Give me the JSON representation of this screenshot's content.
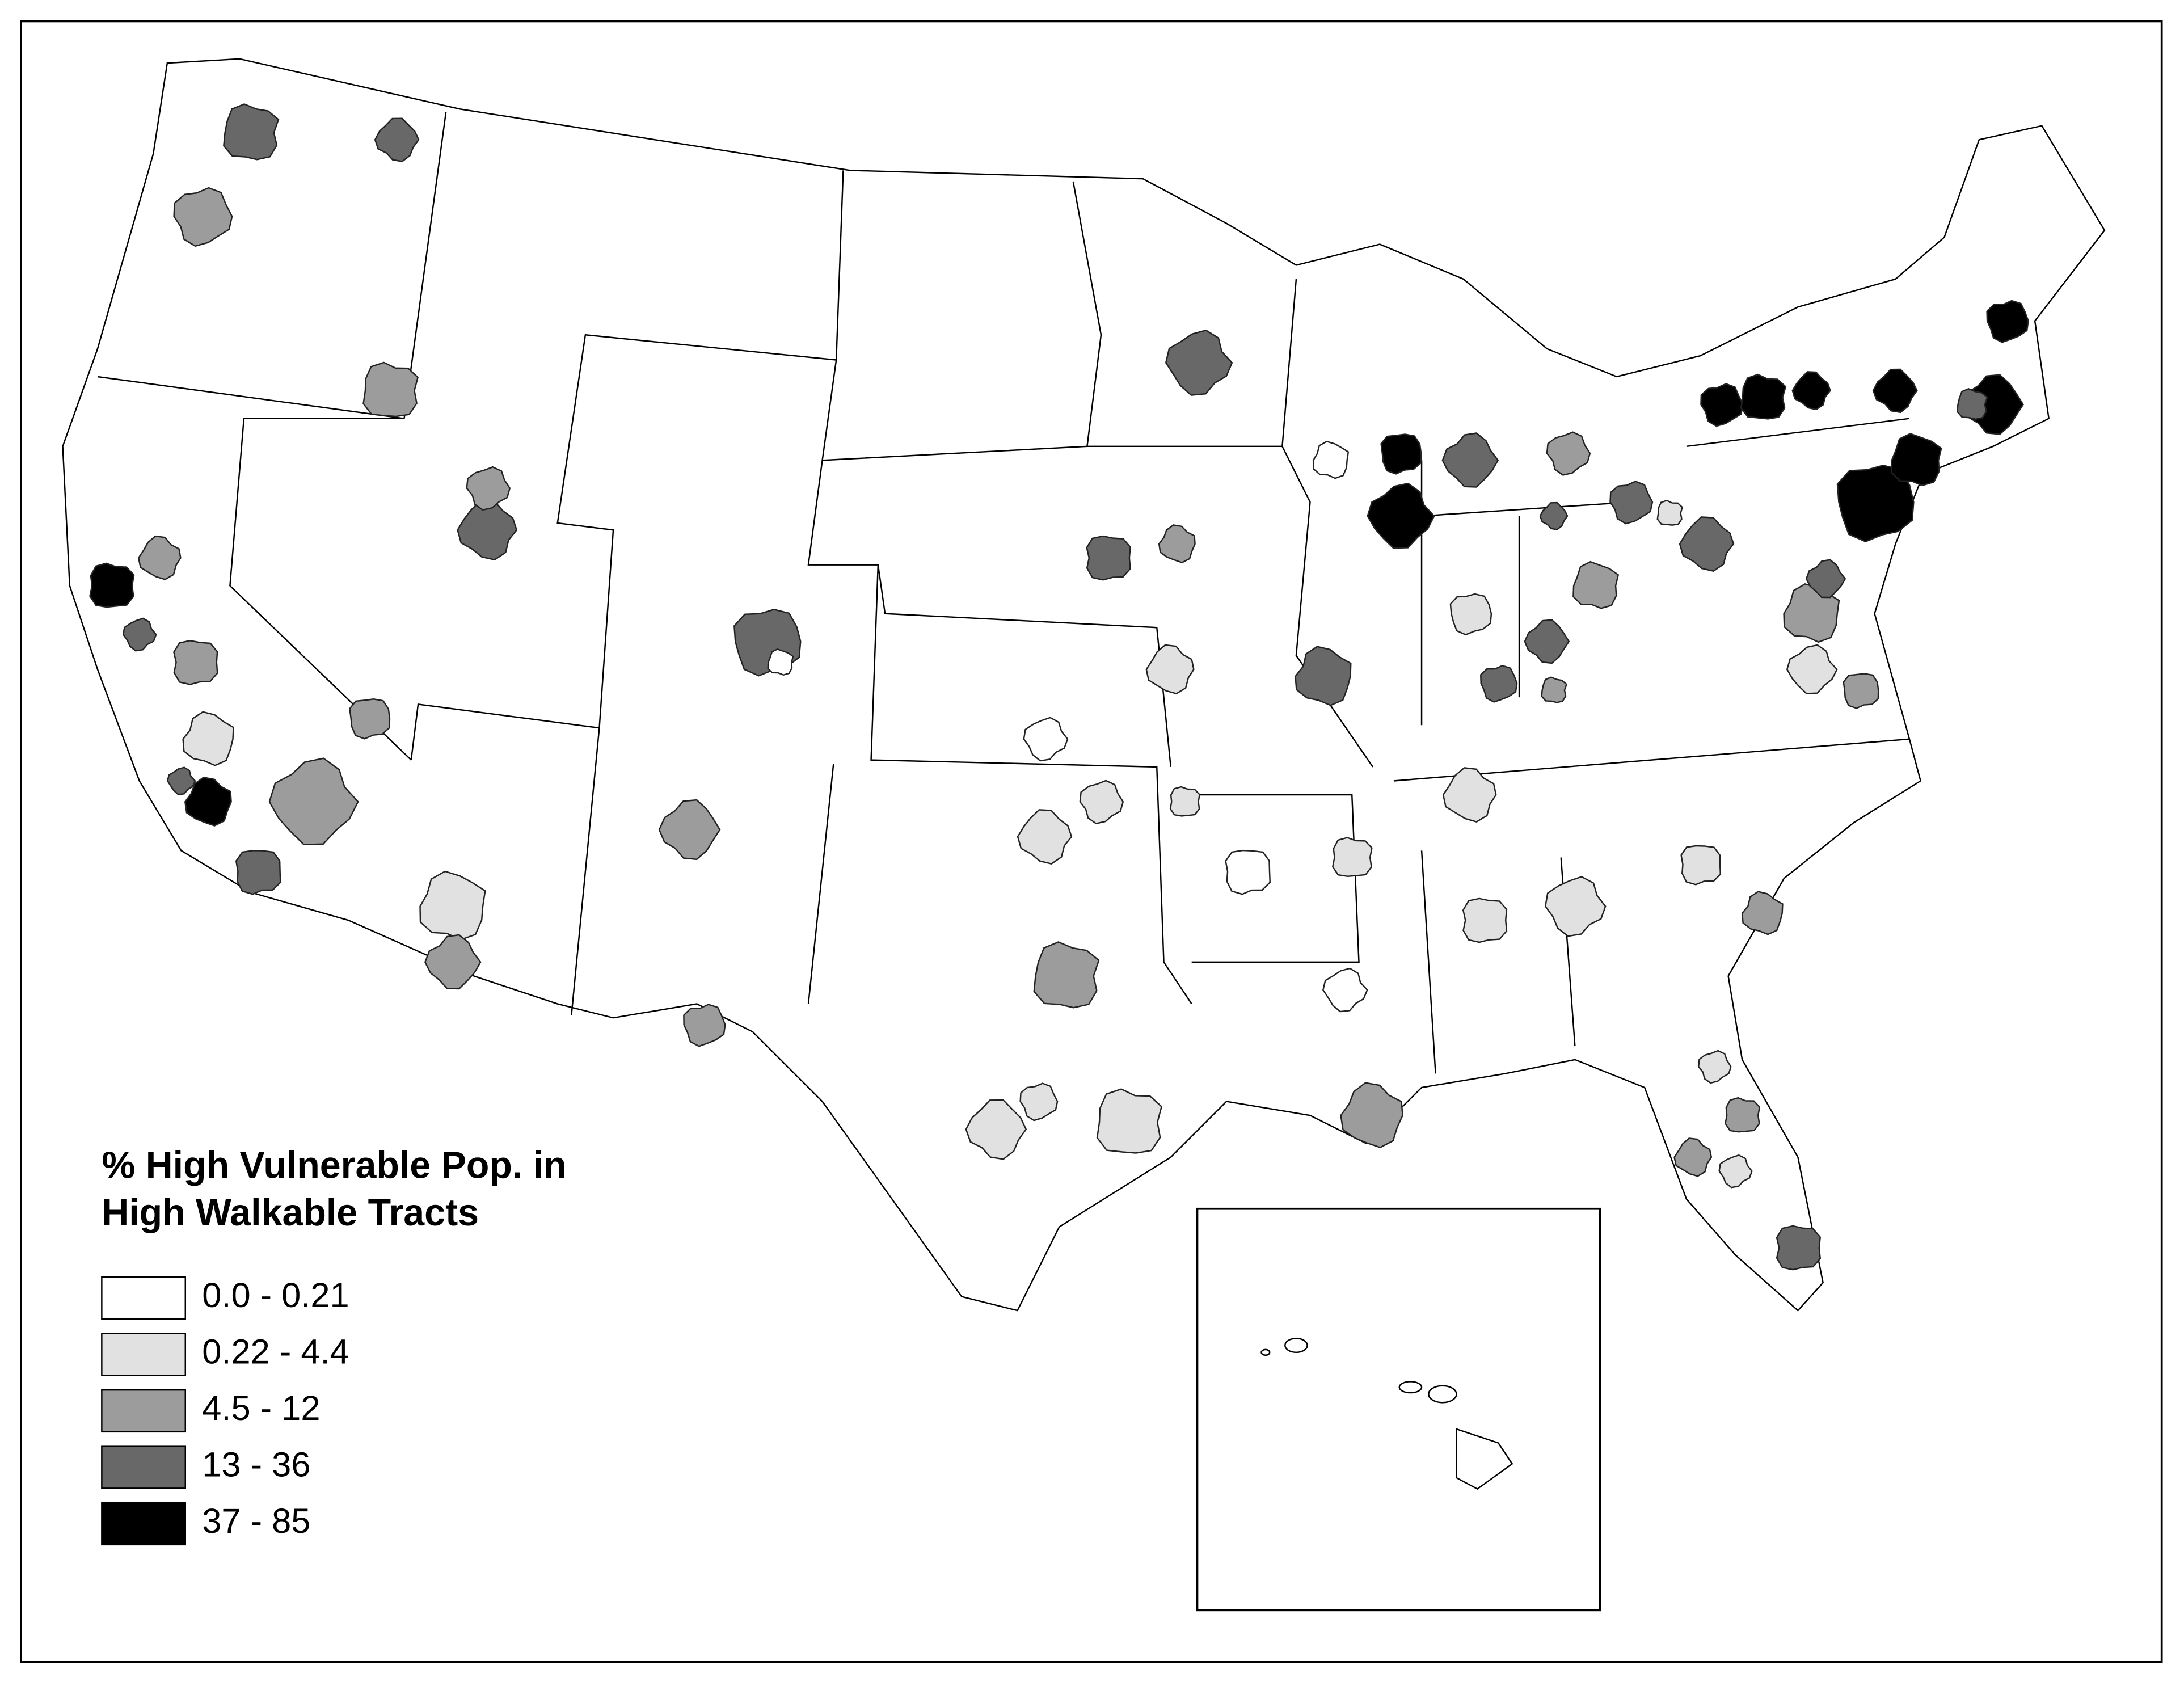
{
  "legend": {
    "title": [
      "% High Vulnerable Pop. in",
      "High Walkable Tracts"
    ],
    "classes": [
      {
        "label": "0.0 - 0.21",
        "color": "#ffffff"
      },
      {
        "label": "0.22 - 4.4",
        "color": "#e1e1e1"
      },
      {
        "label": "4.5 - 12",
        "color": "#9c9c9c"
      },
      {
        "label": "13 - 36",
        "color": "#686868"
      },
      {
        "label": "37 - 85",
        "color": "#000000"
      }
    ]
  }
}
